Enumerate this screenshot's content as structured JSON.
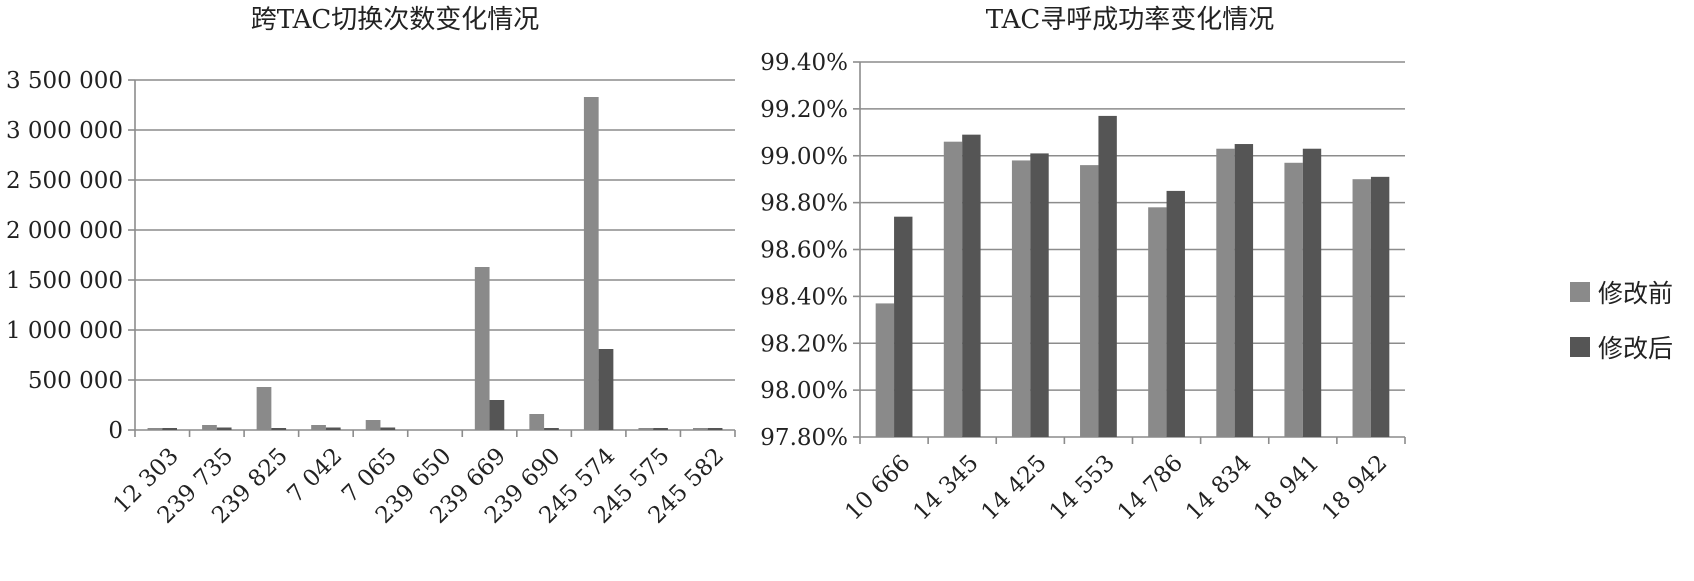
{
  "chart_data": [
    {
      "type": "bar",
      "title": "跨TAC切换次数变化情况",
      "xlabel": "",
      "ylabel": "",
      "categories": [
        "12 303",
        "239 735",
        "239 825",
        "7 042",
        "7 065",
        "239 650",
        "239 669",
        "239 690",
        "245 574",
        "245 575",
        "245 582"
      ],
      "series": [
        {
          "name": "修改前",
          "values": [
            20000,
            50000,
            430000,
            50000,
            100000,
            0,
            1630000,
            160000,
            3330000,
            20000,
            20000
          ]
        },
        {
          "name": "修改后",
          "values": [
            20000,
            25000,
            20000,
            25000,
            25000,
            0,
            300000,
            20000,
            810000,
            20000,
            20000
          ]
        }
      ],
      "ylim": [
        0,
        3500000
      ],
      "yticks": [
        "0",
        "500 000",
        "1 000 000",
        "1 500 000",
        "2 000 000",
        "2 500 000",
        "3 000 000",
        "3 500 000"
      ],
      "grid": true,
      "colors": {
        "before": "#8a8a8a",
        "after": "#555555"
      }
    },
    {
      "type": "bar",
      "title": "TAC寻呼成功率变化情况",
      "xlabel": "",
      "ylabel": "",
      "categories": [
        "10 666",
        "14 345",
        "14 425",
        "14 553",
        "14 786",
        "14 834",
        "18 941",
        "18 942"
      ],
      "series": [
        {
          "name": "修改前",
          "values": [
            98.37,
            99.06,
            98.98,
            98.96,
            98.78,
            99.03,
            98.97,
            98.9
          ]
        },
        {
          "name": "修改后",
          "values": [
            98.74,
            99.09,
            99.01,
            99.17,
            98.85,
            99.05,
            99.03,
            98.91
          ]
        }
      ],
      "ylim": [
        97.8,
        99.4
      ],
      "yticks": [
        "97.80%",
        "98.00%",
        "98.20%",
        "98.40%",
        "98.60%",
        "98.80%",
        "99.00%",
        "99.20%",
        "99.40%"
      ],
      "grid": true,
      "legend": {
        "position": "right",
        "entries": [
          "修改前",
          "修改后"
        ]
      },
      "colors": {
        "before": "#8a8a8a",
        "after": "#555555"
      }
    }
  ]
}
